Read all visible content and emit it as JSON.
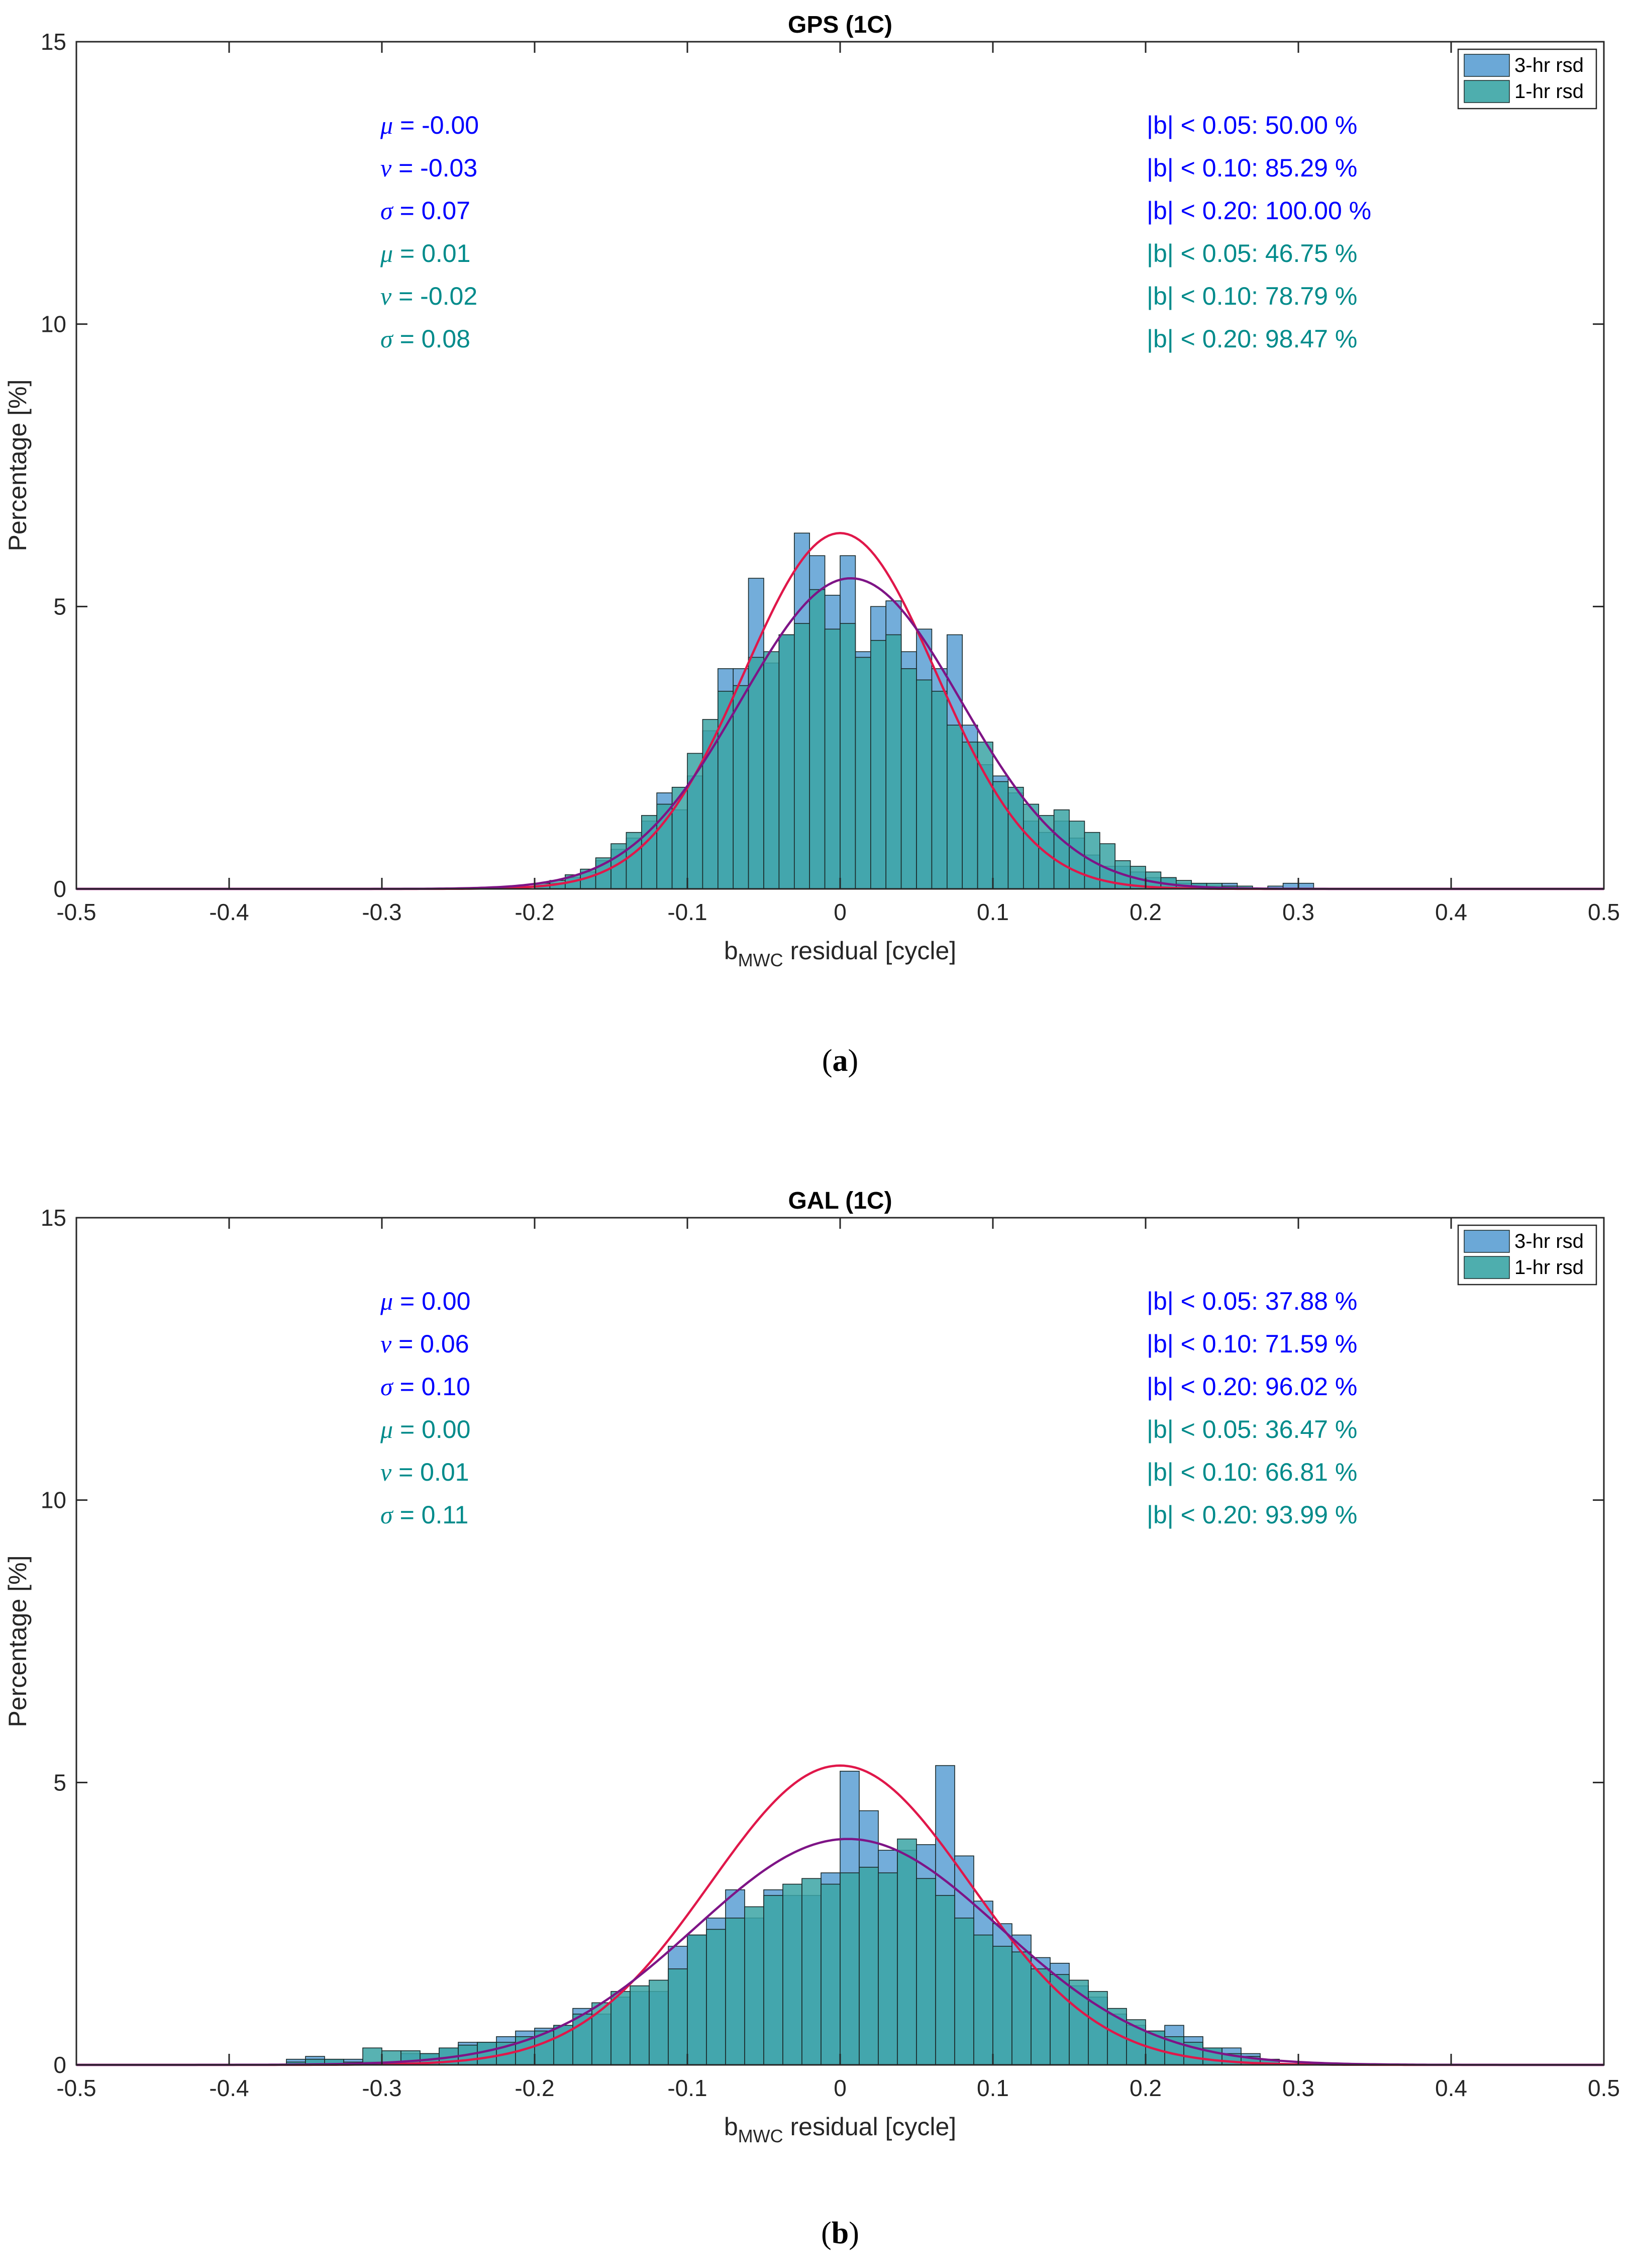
{
  "chart_data": [
    {
      "type": "bar",
      "title": "GPS (1C)",
      "caption_letter": "a",
      "xlabel_main": "b",
      "xlabel_sub": "MWC",
      "xlabel_rest": " residual [cycle]",
      "ylabel": "Percentage [%]",
      "xlim": [
        -0.5,
        0.5
      ],
      "ylim": [
        0,
        15
      ],
      "xticks": [
        "-0.5",
        "-0.4",
        "-0.3",
        "-0.2",
        "-0.1",
        "0",
        "0.1",
        "0.2",
        "0.3",
        "0.4",
        "0.5"
      ],
      "yticks": [
        "0",
        "5",
        "10",
        "15"
      ],
      "legend": [
        "3-hr rsd",
        "1-hr rsd"
      ],
      "series": [
        {
          "name": "3-hr rsd",
          "color": "#5b9fd3",
          "bin_width": 0.01,
          "bins": [
            [
              -0.2,
              0.05
            ],
            [
              -0.19,
              0.1
            ],
            [
              -0.18,
              0.2
            ],
            [
              -0.17,
              0.3
            ],
            [
              -0.16,
              0.5
            ],
            [
              -0.15,
              0.7
            ],
            [
              -0.14,
              0.9
            ],
            [
              -0.13,
              1.2
            ],
            [
              -0.12,
              1.7
            ],
            [
              -0.11,
              1.4
            ],
            [
              -0.1,
              2.0
            ],
            [
              -0.09,
              2.8
            ],
            [
              -0.08,
              3.9
            ],
            [
              -0.07,
              3.9
            ],
            [
              -0.06,
              5.5
            ],
            [
              -0.05,
              4.0
            ],
            [
              -0.04,
              4.5
            ],
            [
              -0.03,
              6.3
            ],
            [
              -0.02,
              5.9
            ],
            [
              -0.01,
              5.2
            ],
            [
              0.0,
              5.9
            ],
            [
              0.01,
              4.2
            ],
            [
              0.02,
              5.0
            ],
            [
              0.03,
              5.1
            ],
            [
              0.04,
              4.2
            ],
            [
              0.05,
              4.6
            ],
            [
              0.06,
              3.9
            ],
            [
              0.07,
              4.5
            ],
            [
              0.08,
              2.9
            ],
            [
              0.09,
              2.2
            ],
            [
              0.1,
              2.0
            ],
            [
              0.11,
              1.7
            ],
            [
              0.12,
              1.2
            ],
            [
              0.13,
              1.0
            ],
            [
              0.14,
              1.2
            ],
            [
              0.15,
              0.9
            ],
            [
              0.16,
              0.6
            ],
            [
              0.17,
              0.4
            ],
            [
              0.18,
              0.4
            ],
            [
              0.19,
              0.3
            ],
            [
              0.2,
              0.2
            ],
            [
              0.21,
              0.2
            ],
            [
              0.22,
              0.1
            ],
            [
              0.23,
              0.1
            ],
            [
              0.24,
              0.05
            ],
            [
              0.25,
              0.1
            ],
            [
              0.28,
              0.05
            ],
            [
              0.29,
              0.1
            ],
            [
              0.3,
              0.1
            ]
          ]
        },
        {
          "name": "1-hr rsd",
          "color": "#3ba5a5",
          "bin_width": 0.01,
          "bins": [
            [
              -0.2,
              0.1
            ],
            [
              -0.19,
              0.15
            ],
            [
              -0.18,
              0.25
            ],
            [
              -0.17,
              0.35
            ],
            [
              -0.16,
              0.55
            ],
            [
              -0.15,
              0.8
            ],
            [
              -0.14,
              1.0
            ],
            [
              -0.13,
              1.3
            ],
            [
              -0.12,
              1.5
            ],
            [
              -0.11,
              1.8
            ],
            [
              -0.1,
              2.4
            ],
            [
              -0.09,
              3.0
            ],
            [
              -0.08,
              3.5
            ],
            [
              -0.07,
              3.6
            ],
            [
              -0.06,
              4.1
            ],
            [
              -0.05,
              4.2
            ],
            [
              -0.04,
              4.5
            ],
            [
              -0.03,
              4.7
            ],
            [
              -0.02,
              5.3
            ],
            [
              -0.01,
              4.6
            ],
            [
              0.0,
              4.7
            ],
            [
              0.01,
              4.1
            ],
            [
              0.02,
              4.4
            ],
            [
              0.03,
              4.5
            ],
            [
              0.04,
              3.9
            ],
            [
              0.05,
              3.7
            ],
            [
              0.06,
              3.5
            ],
            [
              0.07,
              2.9
            ],
            [
              0.08,
              2.6
            ],
            [
              0.09,
              2.6
            ],
            [
              0.1,
              1.9
            ],
            [
              0.11,
              1.8
            ],
            [
              0.12,
              1.5
            ],
            [
              0.13,
              1.3
            ],
            [
              0.14,
              1.4
            ],
            [
              0.15,
              1.2
            ],
            [
              0.16,
              1.0
            ],
            [
              0.17,
              0.8
            ],
            [
              0.18,
              0.5
            ],
            [
              0.19,
              0.4
            ],
            [
              0.2,
              0.3
            ],
            [
              0.21,
              0.2
            ],
            [
              0.22,
              0.15
            ],
            [
              0.23,
              0.1
            ],
            [
              0.24,
              0.1
            ],
            [
              0.25,
              0.05
            ],
            [
              0.26,
              0.05
            ]
          ]
        }
      ],
      "fits": [
        {
          "name": "3-hr fit",
          "color": "#e0174a",
          "peak": 6.3,
          "mean": 0.0,
          "sd": 0.063
        },
        {
          "name": "1-hr fit",
          "color": "#7e1486",
          "peak": 5.5,
          "mean": 0.007,
          "sd": 0.072
        }
      ],
      "stats_left": [
        {
          "sym": "μ",
          "value": " = -0.00",
          "color": "#0000ff"
        },
        {
          "sym": "ν",
          "value": " = -0.03",
          "color": "#0000ff"
        },
        {
          "sym": "σ",
          "value": " = 0.07",
          "color": "#0000ff"
        },
        {
          "sym": "μ",
          "value": " = 0.01",
          "color": "#008b8b"
        },
        {
          "sym": "ν",
          "value": " = -0.02",
          "color": "#008b8b"
        },
        {
          "sym": "σ",
          "value": " = 0.08",
          "color": "#008b8b"
        }
      ],
      "stats_right": [
        {
          "text": "|b| < 0.05: 50.00 %",
          "color": "#0000ff"
        },
        {
          "text": "|b| < 0.10: 85.29 %",
          "color": "#0000ff"
        },
        {
          "text": "|b| < 0.20: 100.00 %",
          "color": "#0000ff"
        },
        {
          "text": "|b| < 0.05: 46.75 %",
          "color": "#008b8b"
        },
        {
          "text": "|b| < 0.10: 78.79 %",
          "color": "#008b8b"
        },
        {
          "text": "|b| < 0.20: 98.47 %",
          "color": "#008b8b"
        }
      ]
    },
    {
      "type": "bar",
      "title": "GAL (1C)",
      "caption_letter": "b",
      "xlabel_main": "b",
      "xlabel_sub": "MWC",
      "xlabel_rest": " residual [cycle]",
      "ylabel": "Percentage [%]",
      "xlim": [
        -0.5,
        0.5
      ],
      "ylim": [
        0,
        15
      ],
      "xticks": [
        "-0.5",
        "-0.4",
        "-0.3",
        "-0.2",
        "-0.1",
        "0",
        "0.1",
        "0.2",
        "0.3",
        "0.4",
        "0.5"
      ],
      "yticks": [
        "0",
        "5",
        "10",
        "15"
      ],
      "legend": [
        "3-hr rsd",
        "1-hr rsd"
      ],
      "series": [
        {
          "name": "3-hr rsd",
          "color": "#5b9fd3",
          "bin_width": 0.0125,
          "bins": [
            [
              -0.3625,
              0.1
            ],
            [
              -0.35,
              0.15
            ],
            [
              -0.3375,
              0.1
            ],
            [
              -0.325,
              0.1
            ],
            [
              -0.3125,
              0.05
            ],
            [
              -0.3,
              0.05
            ],
            [
              -0.2875,
              0.2
            ],
            [
              -0.275,
              0.2
            ],
            [
              -0.2625,
              0.3
            ],
            [
              -0.25,
              0.4
            ],
            [
              -0.2375,
              0.4
            ],
            [
              -0.225,
              0.5
            ],
            [
              -0.2125,
              0.6
            ],
            [
              -0.2,
              0.65
            ],
            [
              -0.1875,
              0.7
            ],
            [
              -0.175,
              1.0
            ],
            [
              -0.1625,
              0.9
            ],
            [
              -0.15,
              1.2
            ],
            [
              -0.1375,
              1.3
            ],
            [
              -0.125,
              1.3
            ],
            [
              -0.1125,
              2.1
            ],
            [
              -0.1,
              2.3
            ],
            [
              -0.0875,
              2.6
            ],
            [
              -0.075,
              3.1
            ],
            [
              -0.0625,
              2.6
            ],
            [
              -0.05,
              3.1
            ],
            [
              -0.0375,
              3.0
            ],
            [
              -0.025,
              3.0
            ],
            [
              -0.0125,
              3.4
            ],
            [
              0.0,
              5.2
            ],
            [
              0.0125,
              4.5
            ],
            [
              0.025,
              3.8
            ],
            [
              0.0375,
              3.8
            ],
            [
              0.05,
              3.9
            ],
            [
              0.0625,
              5.3
            ],
            [
              0.075,
              3.7
            ],
            [
              0.0875,
              2.9
            ],
            [
              0.1,
              2.5
            ],
            [
              0.1125,
              2.3
            ],
            [
              0.125,
              1.9
            ],
            [
              0.1375,
              1.8
            ],
            [
              0.15,
              1.4
            ],
            [
              0.1625,
              1.2
            ],
            [
              0.175,
              0.9
            ],
            [
              0.1875,
              0.7
            ],
            [
              0.2,
              0.6
            ],
            [
              0.2125,
              0.7
            ],
            [
              0.225,
              0.5
            ],
            [
              0.2375,
              0.3
            ],
            [
              0.25,
              0.3
            ],
            [
              0.2625,
              0.2
            ],
            [
              0.275,
              0.1
            ]
          ]
        },
        {
          "name": "1-hr rsd",
          "color": "#3ba5a5",
          "bin_width": 0.0125,
          "bins": [
            [
              -0.3625,
              0.05
            ],
            [
              -0.35,
              0.1
            ],
            [
              -0.3375,
              0.1
            ],
            [
              -0.325,
              0.05
            ],
            [
              -0.3125,
              0.3
            ],
            [
              -0.3,
              0.25
            ],
            [
              -0.2875,
              0.25
            ],
            [
              -0.275,
              0.2
            ],
            [
              -0.2625,
              0.3
            ],
            [
              -0.25,
              0.35
            ],
            [
              -0.2375,
              0.4
            ],
            [
              -0.225,
              0.4
            ],
            [
              -0.2125,
              0.5
            ],
            [
              -0.2,
              0.6
            ],
            [
              -0.1875,
              0.7
            ],
            [
              -0.175,
              0.9
            ],
            [
              -0.1625,
              1.1
            ],
            [
              -0.15,
              1.3
            ],
            [
              -0.1375,
              1.4
            ],
            [
              -0.125,
              1.5
            ],
            [
              -0.1125,
              1.7
            ],
            [
              -0.1,
              2.3
            ],
            [
              -0.0875,
              2.4
            ],
            [
              -0.075,
              2.6
            ],
            [
              -0.0625,
              2.8
            ],
            [
              -0.05,
              3.0
            ],
            [
              -0.0375,
              3.2
            ],
            [
              -0.025,
              3.3
            ],
            [
              -0.0125,
              3.2
            ],
            [
              0.0,
              3.4
            ],
            [
              0.0125,
              3.5
            ],
            [
              0.025,
              3.4
            ],
            [
              0.0375,
              4.0
            ],
            [
              0.05,
              3.3
            ],
            [
              0.0625,
              3.0
            ],
            [
              0.075,
              2.6
            ],
            [
              0.0875,
              2.3
            ],
            [
              0.1,
              2.1
            ],
            [
              0.1125,
              2.0
            ],
            [
              0.125,
              1.7
            ],
            [
              0.1375,
              1.6
            ],
            [
              0.15,
              1.5
            ],
            [
              0.1625,
              1.3
            ],
            [
              0.175,
              1.0
            ],
            [
              0.1875,
              0.8
            ],
            [
              0.2,
              0.6
            ],
            [
              0.2125,
              0.5
            ],
            [
              0.225,
              0.4
            ],
            [
              0.2375,
              0.3
            ],
            [
              0.25,
              0.2
            ],
            [
              0.2625,
              0.15
            ],
            [
              0.275,
              0.1
            ]
          ]
        }
      ],
      "fits": [
        {
          "name": "3-hr fit",
          "color": "#e0174a",
          "peak": 5.3,
          "mean": 0.0,
          "sd": 0.085
        },
        {
          "name": "1-hr fit",
          "color": "#7e1486",
          "peak": 4.0,
          "mean": 0.005,
          "sd": 0.1
        }
      ],
      "stats_left": [
        {
          "sym": "μ",
          "value": " = 0.00",
          "color": "#0000ff"
        },
        {
          "sym": "ν",
          "value": " = 0.06",
          "color": "#0000ff"
        },
        {
          "sym": "σ",
          "value": " = 0.10",
          "color": "#0000ff"
        },
        {
          "sym": "μ",
          "value": " = 0.00",
          "color": "#008b8b"
        },
        {
          "sym": "ν",
          "value": " = 0.01",
          "color": "#008b8b"
        },
        {
          "sym": "σ",
          "value": " = 0.11",
          "color": "#008b8b"
        }
      ],
      "stats_right": [
        {
          "text": "|b| < 0.05: 37.88 %",
          "color": "#0000ff"
        },
        {
          "text": "|b| < 0.10: 71.59 %",
          "color": "#0000ff"
        },
        {
          "text": "|b| < 0.20: 96.02 %",
          "color": "#0000ff"
        },
        {
          "text": "|b| < 0.05: 36.47 %",
          "color": "#008b8b"
        },
        {
          "text": "|b| < 0.10: 66.81 %",
          "color": "#008b8b"
        },
        {
          "text": "|b| < 0.20: 93.99 %",
          "color": "#008b8b"
        }
      ]
    }
  ]
}
